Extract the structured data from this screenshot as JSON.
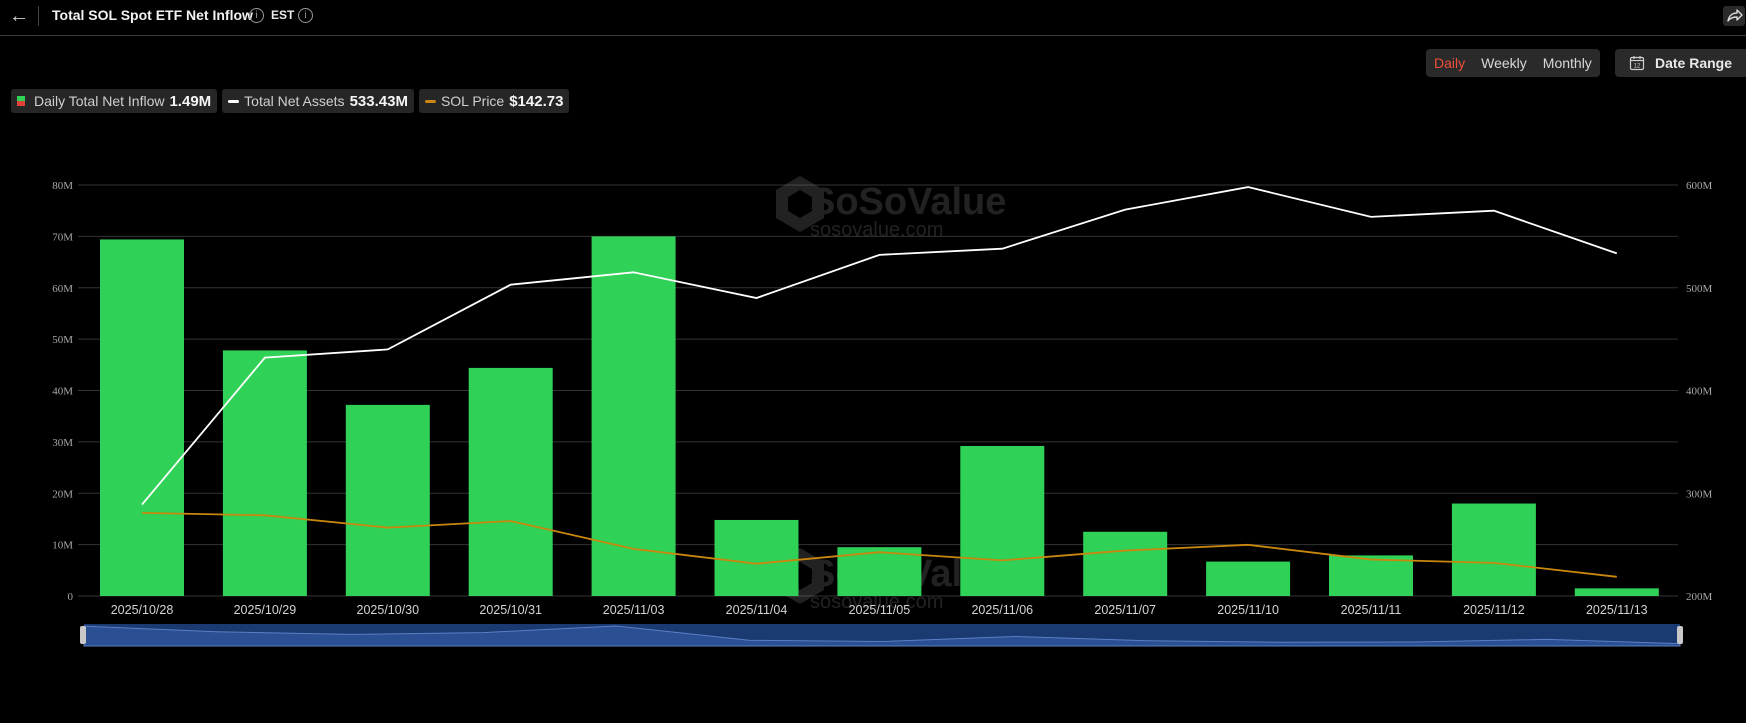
{
  "header": {
    "title": "Total SOL Spot ETF Net Inflow",
    "timezone": "EST"
  },
  "controls": {
    "periods": [
      "Daily",
      "Weekly",
      "Monthly"
    ],
    "active_period": "Daily",
    "date_range_label": "Date Range"
  },
  "legend": {
    "inflow_label": "Daily Total Net Inflow",
    "inflow_value": "1.49M",
    "assets_label": "Total Net Assets",
    "assets_value": "533.43M",
    "price_label": "SOL Price",
    "price_value": "$142.73"
  },
  "watermark": {
    "brand": "SoSoValue",
    "domain": "sosovalue.com"
  },
  "colors": {
    "bar": "#2fd157",
    "bar_swatch_top": "#2fd157",
    "bar_swatch_bottom": "#e0413a",
    "assets_line": "#ffffff",
    "price_line": "#c9870e",
    "grid": "#333333",
    "axis_text": "#a8a8a8",
    "navigator": "#1b3a72",
    "active_period": "#f0503a"
  },
  "chart_data": {
    "type": "bar",
    "categories": [
      "2025/10/28",
      "2025/10/29",
      "2025/10/30",
      "2025/10/31",
      "2025/11/03",
      "2025/11/04",
      "2025/11/05",
      "2025/11/06",
      "2025/11/07",
      "2025/11/10",
      "2025/11/11",
      "2025/11/12",
      "2025/11/13"
    ],
    "series": [
      {
        "name": "Daily Total Net Inflow",
        "type": "bar",
        "axis": "left",
        "values": [
          69.4,
          47.8,
          37.2,
          44.4,
          70.0,
          14.8,
          9.5,
          29.2,
          12.5,
          6.7,
          7.9,
          18.0,
          1.49
        ]
      },
      {
        "name": "Total Net Assets",
        "type": "line",
        "axis": "right",
        "values": [
          289,
          432,
          440,
          503,
          515,
          490,
          532,
          538,
          576,
          598,
          569,
          575,
          533.43
        ]
      }
    ],
    "sol_price_relative": [
      0.88,
      0.85,
      0.7,
      0.78,
      0.44,
      0.26,
      0.4,
      0.3,
      0.42,
      0.49,
      0.31,
      0.27,
      0.1
    ],
    "y_left": {
      "min": 0,
      "max": 80,
      "ticks": [
        0,
        10,
        20,
        30,
        40,
        50,
        60,
        70,
        80
      ],
      "tick_labels": [
        "0",
        "10M",
        "20M",
        "30M",
        "40M",
        "50M",
        "60M",
        "70M",
        "80M"
      ]
    },
    "y_right": {
      "min": 200,
      "max": 600,
      "ticks": [
        200,
        300,
        400,
        500,
        600
      ],
      "tick_labels": [
        "200M",
        "300M",
        "400M",
        "500M",
        "600M"
      ]
    },
    "grid": true,
    "legend_position": "top-left"
  }
}
